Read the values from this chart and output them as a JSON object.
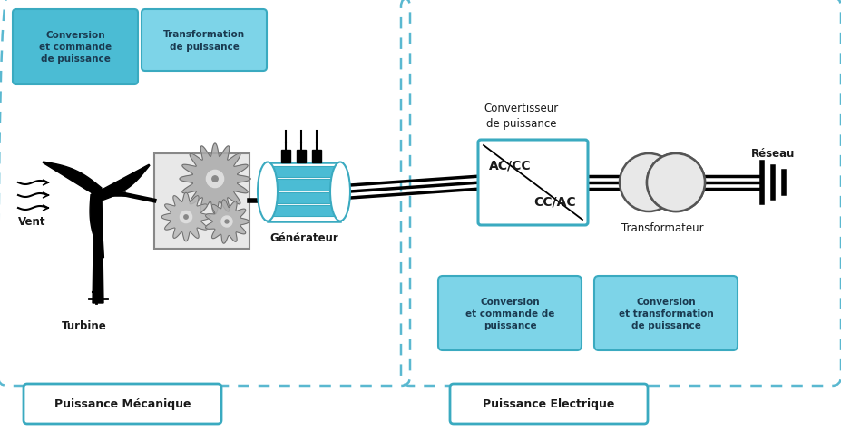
{
  "fig_width": 9.28,
  "fig_height": 4.77,
  "dpi": 100,
  "bg_color": "#ffffff",
  "cyan_fill": "#4bbcd4",
  "cyan_light_fill": "#7dd4e8",
  "cyan_border": "#3aaac0",
  "dashed_color": "#5ab8d0",
  "dark": "#1a1a1a",
  "labels": {
    "conversion_commande": "Conversion\net commande\nde puissance",
    "transformation": "Transformation\nde puissance",
    "convertisseur_label": "Convertisseur\nde puissance",
    "ac_cc": "AC/CC",
    "cc_ac": "CC/AC",
    "transformateur": "Transformateur",
    "reseau": "Réseau",
    "vent": "Vent",
    "turbine": "Turbine",
    "generateur": "Générateur",
    "conversion_commande2": "Conversion\net commande de\npuissance",
    "conversion_transform2": "Conversion\net transformation\nde puissance",
    "puissance_mec": "Puissance Mécanique",
    "puissance_elec": "Puissance Electrique"
  }
}
